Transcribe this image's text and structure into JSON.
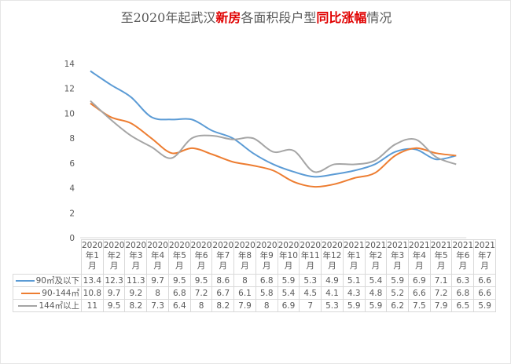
{
  "chart_data": {
    "type": "line",
    "title_segments": [
      {
        "text": "至2020年起武汉",
        "highlight": false
      },
      {
        "text": "新房",
        "highlight": true
      },
      {
        "text": "各面积段户型",
        "highlight": false
      },
      {
        "text": "同比涨幅",
        "highlight": true
      },
      {
        "text": "情况",
        "highlight": false
      }
    ],
    "categories": [
      "2020年1月",
      "2020年2月",
      "2020年3月",
      "2020年4月",
      "2020年5月",
      "2020年6月",
      "2020年7月",
      "2020年8月",
      "2020年9月",
      "2020年10月",
      "2020年11月",
      "2020年12月",
      "2021年1月",
      "2021年2月",
      "2021年3月",
      "2021年4月",
      "2021年5月",
      "2021年6月",
      "2021年7月"
    ],
    "ylim": [
      0,
      14
    ],
    "yticks": [
      0,
      2,
      4,
      6,
      8,
      10,
      12,
      14
    ],
    "grid": false,
    "legend": "data-table-left",
    "smooth": true,
    "series": [
      {
        "name": "90㎡及以下",
        "color": "#5b9bd5",
        "values": [
          13.4,
          12.3,
          11.3,
          9.7,
          9.5,
          9.5,
          8.6,
          8.0,
          6.8,
          5.9,
          5.3,
          4.9,
          5.1,
          5.4,
          5.9,
          6.9,
          7.1,
          6.3,
          6.6
        ]
      },
      {
        "name": "90-144㎡",
        "color": "#ed7d31",
        "values": [
          10.8,
          9.7,
          9.2,
          8,
          6.8,
          7.2,
          6.7,
          6.1,
          5.8,
          5.4,
          4.5,
          4.1,
          4.3,
          4.8,
          5.2,
          6.6,
          7.2,
          6.8,
          6.6
        ]
      },
      {
        "name": "144㎡以上",
        "color": "#a5a5a5",
        "values": [
          11,
          9.5,
          8.2,
          7.3,
          6.4,
          8.0,
          8.2,
          7.9,
          8.0,
          6.9,
          7.0,
          5.3,
          5.9,
          5.9,
          6.2,
          7.5,
          7.9,
          6.5,
          5.9
        ]
      }
    ]
  }
}
